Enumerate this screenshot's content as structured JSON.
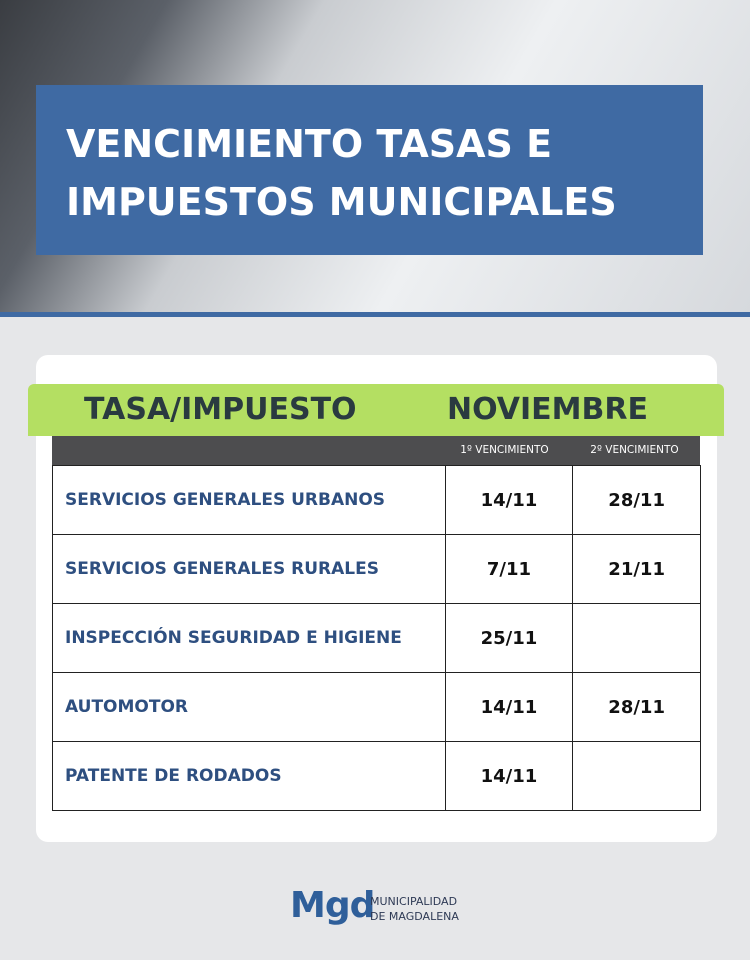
{
  "header": {
    "title": [
      "VENCIMIENTO TASAS E",
      "IMPUESTOS MUNICIPALES"
    ]
  },
  "table": {
    "columns": [
      "TASA/IMPUESTO",
      "NOVIEMBRE"
    ],
    "subcolumns": [
      "1º VENCIMIENTO",
      "2º VENCIMIENTO"
    ],
    "rows": [
      {
        "name": "SERVICIOS GENERALES URBANOS",
        "dates": [
          "14/11",
          "28/11"
        ]
      },
      {
        "name": "SERVICIOS GENERALES RURALES",
        "dates": [
          "7/11",
          "21/11"
        ]
      },
      {
        "name": "INSPECCIÓN SEGURIDAD E HIGIENE",
        "dates": [
          "25/11"
        ]
      },
      {
        "name": "AUTOMOTOR",
        "dates": [
          "14/11",
          "28/11"
        ]
      },
      {
        "name": "PATENTE DE RODADOS",
        "dates": [
          "14/11"
        ]
      }
    ]
  },
  "footer": {
    "logo": "Mgd",
    "name": [
      "MUNICIPALIDAD",
      "DE MAGDALENA"
    ]
  }
}
